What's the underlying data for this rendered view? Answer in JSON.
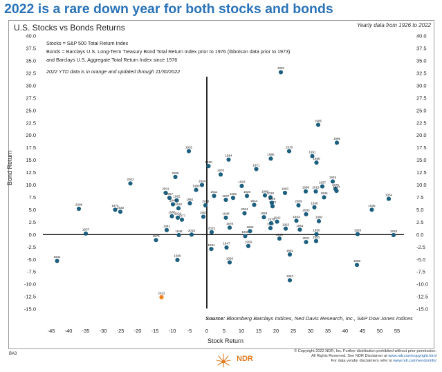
{
  "headline": "2022 is a rare down year for both stocks and bonds",
  "chart_data": {
    "type": "scatter",
    "title": "U.S. Stocks vs Bonds Returns",
    "xlabel": "Stock Return",
    "ylabel": "Bond Return",
    "xlim": [
      -47,
      57
    ],
    "ylim": [
      -15,
      40
    ],
    "x_ticks": [
      -45,
      -40,
      -35,
      -30,
      -25,
      -20,
      -15,
      -10,
      -5,
      0,
      5,
      10,
      15,
      20,
      25,
      30,
      35,
      40,
      45,
      50,
      55
    ],
    "y_ticks": [
      -15,
      -12.5,
      -10,
      -7.5,
      -5,
      -2.5,
      0,
      2.5,
      5,
      7.5,
      10,
      12.5,
      15,
      17.5,
      20,
      22.5,
      25,
      27.5,
      30,
      32.5,
      35,
      37.5,
      40
    ],
    "annotation_period": "Yearly data from 1926 to 2022",
    "notes": [
      "Stocks = S&P 500 Total Return Index",
      "Bonds = Barclays U.S. Long-Term Treasury Bond Total Return Index prior to 1976 (Ibbotson data prior to 1973)",
      "and Barclays U.S. Aggregate Total Return Index since 1976"
    ],
    "ytd_note": "2022 YTD data is in orange and updated through 11/30/2022",
    "source_label": "Source:",
    "source_text": "Bloomberg Barclays Indices, Ned Davis Research, Inc., S&P Dow Jones Indices",
    "colors": {
      "points": "#1d5f7e",
      "highlight": "#f07f1e",
      "axis": "#111111",
      "headline": "#2a73b8"
    },
    "points": [
      {
        "year": "1931",
        "x": -43.3,
        "y": -5.3
      },
      {
        "year": "2008",
        "x": -37.0,
        "y": 5.2
      },
      {
        "year": "1937",
        "x": -35.0,
        "y": 0.2
      },
      {
        "year": "1974",
        "x": -26.5,
        "y": 5.0
      },
      {
        "year": "1930",
        "x": -25.0,
        "y": 4.6
      },
      {
        "year": "2002",
        "x": -22.1,
        "y": 10.3
      },
      {
        "year": "1973",
        "x": -14.7,
        "y": -1.1
      },
      {
        "year": "2022",
        "x": -13.1,
        "y": -12.6,
        "highlight": true
      },
      {
        "year": "2001",
        "x": -11.9,
        "y": 8.4
      },
      {
        "year": "1941",
        "x": -11.6,
        "y": 0.9
      },
      {
        "year": "1957",
        "x": -10.8,
        "y": 7.4
      },
      {
        "year": "1966",
        "x": -10.1,
        "y": 3.7
      },
      {
        "year": "1962",
        "x": -8.7,
        "y": 6.9
      },
      {
        "year": "2000",
        "x": -9.1,
        "y": 11.6
      },
      {
        "year": "1940",
        "x": -9.8,
        "y": 6.1
      },
      {
        "year": "1977",
        "x": -7.2,
        "y": 3.0
      },
      {
        "year": "1929",
        "x": -8.4,
        "y": 3.4
      },
      {
        "year": "1946",
        "x": -8.1,
        "y": -0.1
      },
      {
        "year": "1969",
        "x": -8.5,
        "y": -5.1
      },
      {
        "year": "1932",
        "x": -8.2,
        "y": 5.3
      },
      {
        "year": "2018",
        "x": -4.4,
        "y": 0.0
      },
      {
        "year": "1981",
        "x": -4.9,
        "y": 6.3
      },
      {
        "year": "1953",
        "x": -1.0,
        "y": 3.6
      },
      {
        "year": "1990",
        "x": -3.1,
        "y": 9.0
      },
      {
        "year": "1934",
        "x": -1.4,
        "y": 10.0
      },
      {
        "year": "1939",
        "x": -0.4,
        "y": 5.9
      },
      {
        "year": "1932b",
        "x": -5.2,
        "y": 16.8
      },
      {
        "year": "1960",
        "x": 0.5,
        "y": 13.8
      },
      {
        "year": "1994",
        "x": 1.3,
        "y": -2.9
      },
      {
        "year": "2015",
        "x": 1.4,
        "y": 0.5
      },
      {
        "year": "1970",
        "x": 4.0,
        "y": 12.1
      },
      {
        "year": "1984",
        "x": 6.3,
        "y": 15.1
      },
      {
        "year": "2011",
        "x": 2.1,
        "y": 7.8
      },
      {
        "year": "1948",
        "x": 5.5,
        "y": 3.4
      },
      {
        "year": "1947",
        "x": 5.7,
        "y": -2.6
      },
      {
        "year": "1956",
        "x": 6.6,
        "y": -5.6
      },
      {
        "year": "1978",
        "x": 6.6,
        "y": 1.4
      },
      {
        "year": "2007",
        "x": 5.5,
        "y": 7.0
      },
      {
        "year": "1926",
        "x": 11.6,
        "y": 7.8
      },
      {
        "year": "1992",
        "x": 7.6,
        "y": 7.4
      },
      {
        "year": "1971",
        "x": 14.3,
        "y": 13.2
      },
      {
        "year": "1993",
        "x": 10.1,
        "y": 9.8
      },
      {
        "year": "2004",
        "x": 10.9,
        "y": 4.3
      },
      {
        "year": "2014",
        "x": 13.7,
        "y": 6.0
      },
      {
        "year": "1968",
        "x": 11.1,
        "y": -0.3
      },
      {
        "year": "1959",
        "x": 12.0,
        "y": -2.3
      },
      {
        "year": "1964",
        "x": 16.5,
        "y": 3.5
      },
      {
        "year": "1986",
        "x": 18.5,
        "y": 15.3
      },
      {
        "year": "1982",
        "x": 21.4,
        "y": 32.7
      },
      {
        "year": "1976",
        "x": 23.8,
        "y": 16.8
      },
      {
        "year": "2020",
        "x": 18.4,
        "y": 7.5
      },
      {
        "year": "1952",
        "x": 18.4,
        "y": 1.3
      },
      {
        "year": "1972",
        "x": 19.0,
        "y": 5.7
      },
      {
        "year": "1979",
        "x": 18.6,
        "y": 2.3
      },
      {
        "year": "1983",
        "x": 22.6,
        "y": 8.4
      },
      {
        "year": "1965",
        "x": 12.5,
        "y": 0.7
      },
      {
        "year": "1988",
        "x": 16.8,
        "y": 7.9
      },
      {
        "year": "1999",
        "x": 21.0,
        "y": -0.8
      },
      {
        "year": "1942",
        "x": 20.3,
        "y": 2.6
      },
      {
        "year": "1961",
        "x": 26.9,
        "y": 1.0
      },
      {
        "year": "1951",
        "x": 24.0,
        "y": -4.0
      },
      {
        "year": "1967",
        "x": 24.0,
        "y": -9.2
      },
      {
        "year": "2009",
        "x": 26.5,
        "y": 5.9
      },
      {
        "year": "2003",
        "x": 28.7,
        "y": 4.1
      },
      {
        "year": "1963",
        "x": 22.8,
        "y": 1.2
      },
      {
        "year": "1950",
        "x": 31.7,
        "y": 0.1
      },
      {
        "year": "2021",
        "x": 28.7,
        "y": -1.5
      },
      {
        "year": "1949",
        "x": 18.8,
        "y": 6.4
      },
      {
        "year": "1998",
        "x": 28.6,
        "y": 8.7
      },
      {
        "year": "2019",
        "x": 31.5,
        "y": 8.7
      },
      {
        "year": "1991",
        "x": 30.5,
        "y": 15.8
      },
      {
        "year": "1989",
        "x": 31.7,
        "y": 14.5
      },
      {
        "year": "1985",
        "x": 32.2,
        "y": 22.1
      },
      {
        "year": "1997",
        "x": 33.4,
        "y": 9.7
      },
      {
        "year": "1980",
        "x": 32.4,
        "y": 2.7
      },
      {
        "year": "1955",
        "x": 31.6,
        "y": -1.3
      },
      {
        "year": "1975",
        "x": 37.2,
        "y": 9.2
      },
      {
        "year": "1945",
        "x": 36.4,
        "y": 10.7
      },
      {
        "year": "1927",
        "x": 37.5,
        "y": 8.8
      },
      {
        "year": "1995",
        "x": 37.6,
        "y": 18.5
      },
      {
        "year": "1936",
        "x": 33.9,
        "y": 7.5
      },
      {
        "year": "1943",
        "x": 25.9,
        "y": 2.8
      },
      {
        "year": "1938",
        "x": 31.1,
        "y": 5.5
      },
      {
        "year": "1928",
        "x": 43.6,
        "y": 0.1
      },
      {
        "year": "1958",
        "x": 43.4,
        "y": -6.1
      },
      {
        "year": "1935",
        "x": 47.7,
        "y": 5.0
      },
      {
        "year": "1954",
        "x": 52.6,
        "y": 7.2
      },
      {
        "year": "1933",
        "x": 54.0,
        "y": -0.1
      }
    ]
  },
  "tag": "BA3",
  "logo": {
    "text": "NDR",
    "icon": "ndr-sunburst-logo"
  },
  "footer": {
    "line1": "© Copyright 2022 NDR, Inc. Further distribution prohibited without prior permission.",
    "line2": "All Rights Reserved. See NDR Disclaimer at",
    "line2_link": "www.ndr.com/copyright.html",
    "line3": "For data vendor disclaimers refer to",
    "line3_link": "www.ndr.com/vendorinfo/"
  }
}
